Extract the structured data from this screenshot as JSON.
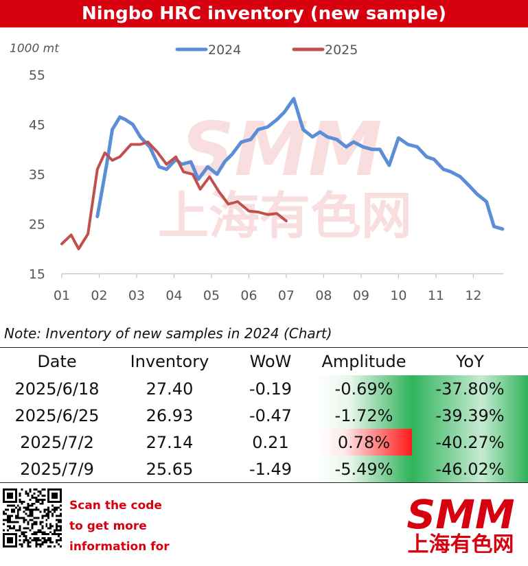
{
  "title": "Ningbo HRC inventory (new sample)",
  "chart_data": {
    "type": "line",
    "ylabel": "1000 mt",
    "ylim": [
      15,
      55
    ],
    "yticks": [
      15,
      25,
      35,
      45,
      55
    ],
    "x_ticks": [
      "01",
      "02",
      "03",
      "04",
      "05",
      "06",
      "07",
      "08",
      "09",
      "10",
      "11",
      "12"
    ],
    "x_range": [
      1,
      12.8
    ],
    "legend_position": "top",
    "grid": false,
    "series": [
      {
        "name": "2024",
        "color": "#5b8ed6",
        "x": [
          1.95,
          2.2,
          2.35,
          2.55,
          2.7,
          2.9,
          3.1,
          3.35,
          3.6,
          3.8,
          4.05,
          4.2,
          4.45,
          4.65,
          4.9,
          5.15,
          5.35,
          5.55,
          5.8,
          6.05,
          6.25,
          6.5,
          6.75,
          6.95,
          7.2,
          7.45,
          7.7,
          7.9,
          8.1,
          8.35,
          8.6,
          8.8,
          9.05,
          9.3,
          9.5,
          9.75,
          10.0,
          10.25,
          10.5,
          10.75,
          10.95,
          11.2,
          11.4,
          11.65,
          11.85,
          12.1,
          12.35,
          12.55,
          12.78
        ],
        "values": [
          26.5,
          37.0,
          44.0,
          46.5,
          46.0,
          45.0,
          42.5,
          40.5,
          36.5,
          36.0,
          38.0,
          37.0,
          37.5,
          34.0,
          36.5,
          35.0,
          37.5,
          39.0,
          41.5,
          42.0,
          44.0,
          44.5,
          46.0,
          47.5,
          50.2,
          44.0,
          42.5,
          43.5,
          42.5,
          42.0,
          40.5,
          41.5,
          40.5,
          40.0,
          40.0,
          36.8,
          42.3,
          41.0,
          40.5,
          38.5,
          38.0,
          36.0,
          35.5,
          34.5,
          33.0,
          31.0,
          29.5,
          24.5,
          24.0
        ],
        "line_width": 5
      },
      {
        "name": "2025",
        "color": "#c0504d",
        "x": [
          1.0,
          1.25,
          1.45,
          1.7,
          1.95,
          2.15,
          2.35,
          2.55,
          2.85,
          3.1,
          3.3,
          3.55,
          3.8,
          4.05,
          4.25,
          4.5,
          4.7,
          4.95,
          5.2,
          5.45,
          5.7,
          6.0,
          6.25,
          6.5,
          6.75,
          7.0
        ],
        "values": [
          21.0,
          22.8,
          20.0,
          23.0,
          36.0,
          39.3,
          37.8,
          38.5,
          41.0,
          41.0,
          41.5,
          39.5,
          37.0,
          38.5,
          35.5,
          35.0,
          32.0,
          34.5,
          31.5,
          29.0,
          29.5,
          27.6,
          27.4,
          26.9,
          27.1,
          25.6
        ],
        "line_width": 4
      }
    ]
  },
  "note": "Note: Inventory of new samples in 2024 (Chart)",
  "table": {
    "headers": [
      "Date",
      "Inventory",
      "WoW",
      "Amplitude",
      "YoY"
    ],
    "rows": [
      {
        "date": "2025/6/18",
        "inventory": "27.40",
        "wow": "-0.19",
        "amplitude": "-0.69%",
        "yoy": "-37.80%",
        "amp_sign": "neg"
      },
      {
        "date": "2025/6/25",
        "inventory": "26.93",
        "wow": "-0.47",
        "amplitude": "-1.72%",
        "yoy": "-39.39%",
        "amp_sign": "neg"
      },
      {
        "date": "2025/7/2",
        "inventory": "27.14",
        "wow": "0.21",
        "amplitude": "0.78%",
        "yoy": "-40.27%",
        "amp_sign": "pos"
      },
      {
        "date": "2025/7/9",
        "inventory": "25.65",
        "wow": "-1.49",
        "amplitude": "-5.49%",
        "yoy": "-46.02%",
        "amp_sign": "neg"
      }
    ],
    "colors": {
      "green": "#2fb35a",
      "red": "#ff1a1a"
    }
  },
  "footer": {
    "scan_lines": [
      "Scan the code",
      "to get more",
      "information for"
    ],
    "logo_text_en": "SMM",
    "logo_text_cn": "上海有色网",
    "brand_color": "#d7000f"
  },
  "watermark": {
    "en": "SMM",
    "cn": "上海有色网"
  }
}
